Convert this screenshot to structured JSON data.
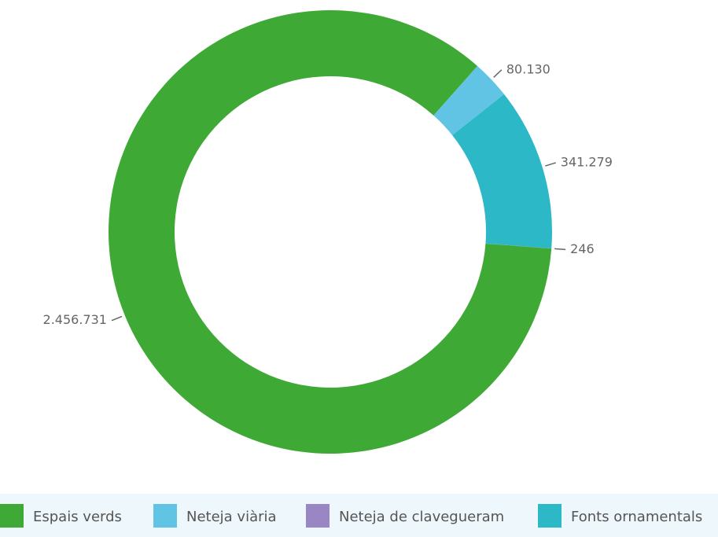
{
  "chart_data": {
    "type": "pie",
    "categories": [
      "Espais verds",
      "Neteja viària",
      "Fonts ornamentals",
      "Neteja de clavegueram"
    ],
    "values": [
      2456731,
      80130,
      341279,
      246
    ],
    "value_labels": [
      "2.456.731",
      "80.130",
      "341.279",
      "246"
    ],
    "colors": [
      "#3eaa35",
      "#62c4e4",
      "#2db8c8",
      "#9b86c4"
    ],
    "legend": "bottom"
  }
}
